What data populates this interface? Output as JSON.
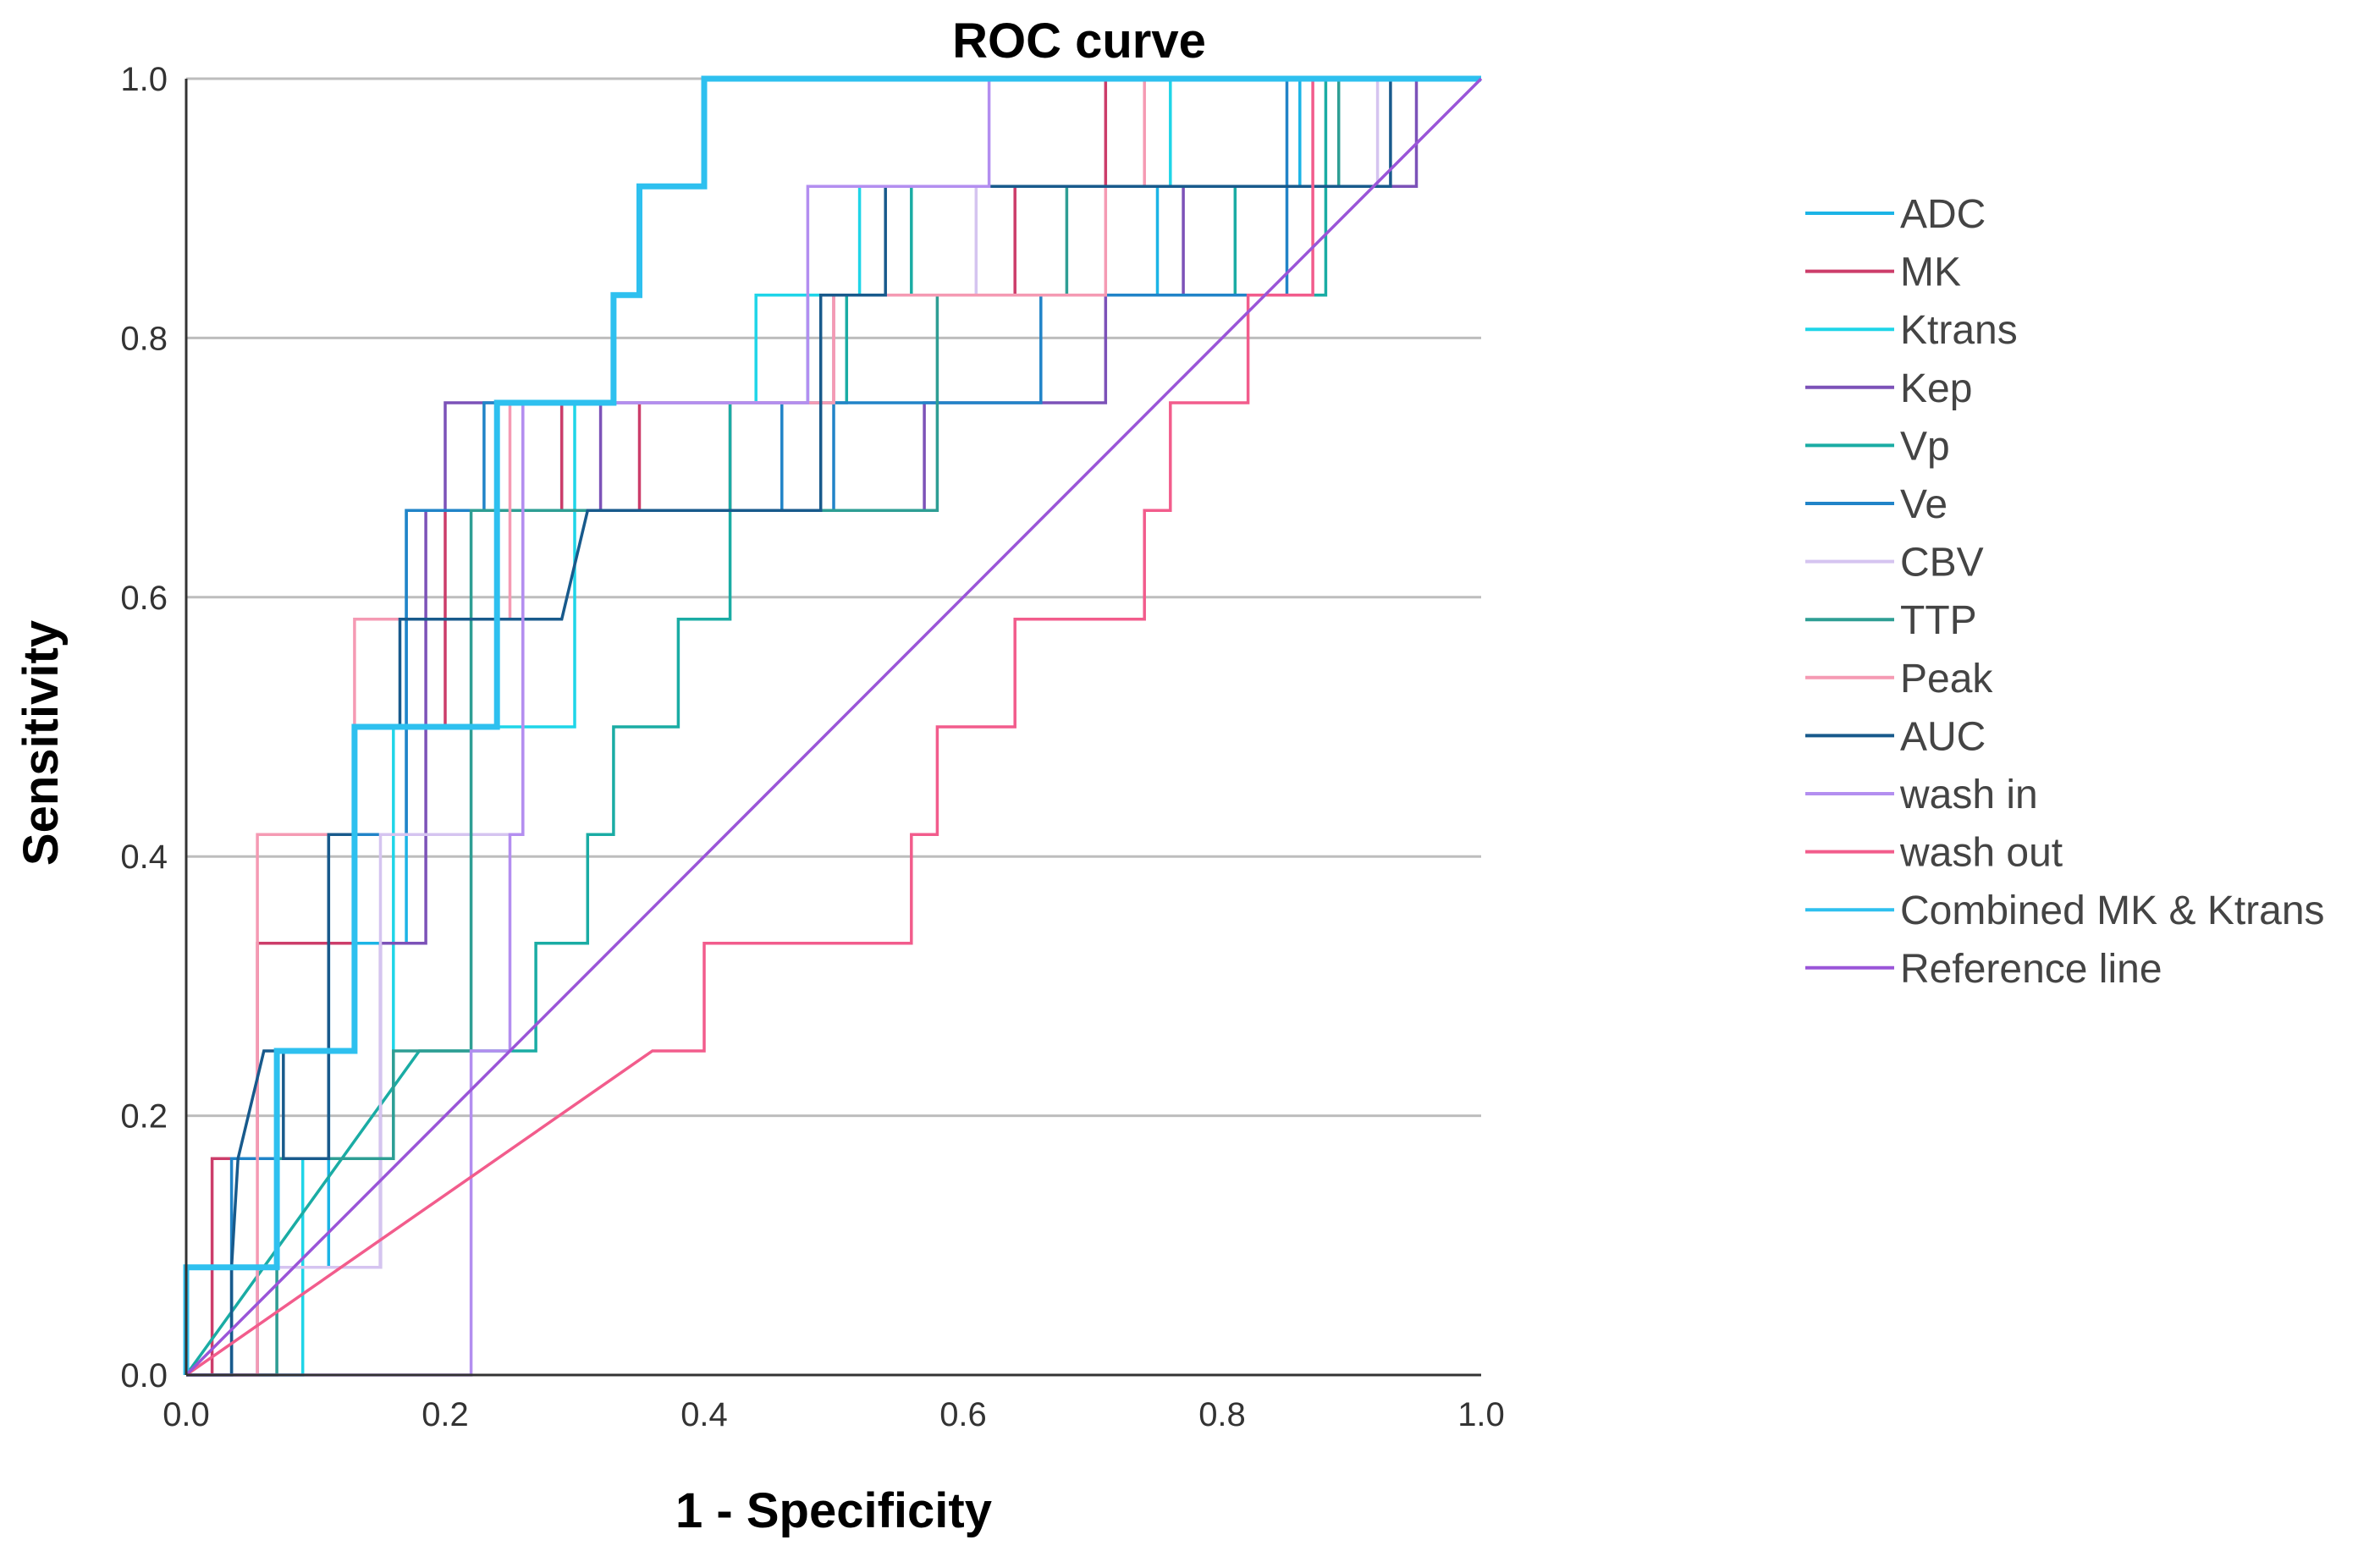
{
  "chart_data": {
    "type": "line",
    "title": "ROC curve",
    "xlabel": "1 - Specificity",
    "ylabel": "Sensitivity",
    "xlim": [
      0,
      1
    ],
    "ylim": [
      0,
      1
    ],
    "xticks": [
      "0.0",
      "0.2",
      "0.4",
      "0.6",
      "0.8",
      "1.0"
    ],
    "yticks": [
      "0.0",
      "0.2",
      "0.4",
      "0.6",
      "0.8",
      "1.0"
    ],
    "grid": "horizontal",
    "legend_position": "right",
    "series": [
      {
        "name": "ADC",
        "color": "#1cb4e6",
        "x": [
          0,
          0,
          0.11,
          0.11,
          0.17,
          0.17,
          0.29,
          0.29,
          0.48,
          0.48,
          0.75,
          0.75,
          0.86,
          0.86,
          1
        ],
        "y": [
          0,
          0.083,
          0.083,
          0.333,
          0.333,
          0.667,
          0.667,
          0.75,
          0.75,
          0.833,
          0.833,
          0.917,
          0.917,
          1,
          1
        ]
      },
      {
        "name": "MK",
        "color": "#cc3d6a",
        "x": [
          0,
          0.02,
          0.02,
          0.055,
          0.055,
          0.13,
          0.13,
          0.2,
          0.2,
          0.29,
          0.29,
          0.35,
          0.35,
          0.42,
          0.42,
          0.5,
          0.5,
          0.64,
          0.64,
          0.71,
          0.71,
          0.87,
          0.87,
          1
        ],
        "y": [
          0,
          0,
          0.167,
          0.167,
          0.333,
          0.333,
          0.5,
          0.5,
          0.667,
          0.667,
          0.75,
          0.75,
          0.667,
          0.667,
          0.75,
          0.75,
          0.833,
          0.833,
          0.917,
          0.917,
          1,
          1,
          1,
          1
        ]
      },
      {
        "name": "Ktrans",
        "color": "#1fd5e8",
        "x": [
          0,
          0.09,
          0.09,
          0.16,
          0.16,
          0.3,
          0.3,
          0.44,
          0.44,
          0.52,
          0.52,
          0.76,
          0.76,
          1
        ],
        "y": [
          0,
          0,
          0.167,
          0.167,
          0.5,
          0.5,
          0.75,
          0.75,
          0.833,
          0.833,
          0.917,
          0.917,
          1,
          1
        ]
      },
      {
        "name": "Kep",
        "color": "#7c52b8",
        "x": [
          0,
          0.055,
          0.055,
          0.15,
          0.15,
          0.185,
          0.185,
          0.2,
          0.2,
          0.32,
          0.32,
          0.57,
          0.57,
          0.71,
          0.71,
          0.77,
          0.77,
          0.95,
          0.95,
          1
        ],
        "y": [
          0,
          0,
          0.083,
          0.083,
          0.333,
          0.333,
          0.667,
          0.667,
          0.75,
          0.75,
          0.667,
          0.667,
          0.75,
          0.75,
          0.833,
          0.833,
          0.917,
          0.917,
          1,
          1
        ]
      },
      {
        "name": "Vp",
        "color": "#1aaca4",
        "x": [
          0,
          0.18,
          0.27,
          0.27,
          0.31,
          0.31,
          0.33,
          0.33,
          0.38,
          0.38,
          0.42,
          0.42,
          0.51,
          0.51,
          0.56,
          0.56,
          0.81,
          0.81,
          0.88,
          0.88,
          1
        ],
        "y": [
          0,
          0.25,
          0.25,
          0.333,
          0.333,
          0.417,
          0.417,
          0.5,
          0.5,
          0.583,
          0.583,
          0.75,
          0.75,
          0.833,
          0.833,
          0.917,
          0.917,
          0.833,
          0.833,
          1,
          1
        ]
      },
      {
        "name": "Ve",
        "color": "#2184c8",
        "x": [
          0,
          0.035,
          0.035,
          0.11,
          0.11,
          0.17,
          0.17,
          0.23,
          0.23,
          0.46,
          0.46,
          0.5,
          0.5,
          0.66,
          0.66,
          0.85,
          0.85,
          1
        ],
        "y": [
          0,
          0,
          0.167,
          0.167,
          0.417,
          0.417,
          0.667,
          0.667,
          0.75,
          0.75,
          0.667,
          0.667,
          0.75,
          0.75,
          0.833,
          0.833,
          1,
          1
        ]
      },
      {
        "name": "CBV",
        "color": "#d5c4f0",
        "x": [
          0,
          0.07,
          0.07,
          0.15,
          0.15,
          0.26,
          0.26,
          0.5,
          0.5,
          0.61,
          0.61,
          0.92,
          0.92,
          1
        ],
        "y": [
          0,
          0,
          0.083,
          0.083,
          0.417,
          0.417,
          0.75,
          0.75,
          0.833,
          0.833,
          0.917,
          0.917,
          1,
          1
        ]
      },
      {
        "name": "TTP",
        "color": "#2e9e94",
        "x": [
          0,
          0.07,
          0.07,
          0.16,
          0.16,
          0.22,
          0.22,
          0.58,
          0.58,
          0.68,
          0.68,
          0.89,
          0.89,
          1
        ],
        "y": [
          0,
          0,
          0.167,
          0.167,
          0.25,
          0.25,
          0.667,
          0.667,
          0.833,
          0.833,
          0.917,
          0.917,
          1,
          1
        ]
      },
      {
        "name": "Peak",
        "color": "#f59ab3",
        "x": [
          0,
          0.055,
          0.055,
          0.13,
          0.13,
          0.25,
          0.25,
          0.5,
          0.5,
          0.71,
          0.71,
          0.74,
          0.74,
          1
        ],
        "y": [
          0,
          0,
          0.417,
          0.417,
          0.583,
          0.583,
          0.75,
          0.75,
          0.833,
          0.833,
          0.917,
          0.917,
          1,
          1
        ]
      },
      {
        "name": "AUC",
        "color": "#185a8c",
        "x": [
          0,
          0.035,
          0.035,
          0.04,
          0.06,
          0.075,
          0.075,
          0.11,
          0.11,
          0.13,
          0.13,
          0.165,
          0.165,
          0.26,
          0.29,
          0.31,
          0.49,
          0.49,
          0.54,
          0.54,
          0.93,
          0.93,
          1
        ],
        "y": [
          0,
          0,
          0.083,
          0.167,
          0.25,
          0.25,
          0.167,
          0.167,
          0.417,
          0.417,
          0.5,
          0.5,
          0.583,
          0.583,
          0.583,
          0.667,
          0.667,
          0.833,
          0.833,
          0.917,
          0.917,
          1,
          1
        ]
      },
      {
        "name": "wash in",
        "color": "#b38ef0",
        "x": [
          0,
          0.22,
          0.22,
          0.25,
          0.25,
          0.26,
          0.26,
          0.48,
          0.48,
          0.52,
          0.52,
          0.62,
          0.62,
          0.94,
          0.94,
          1
        ],
        "y": [
          0,
          0,
          0.25,
          0.25,
          0.417,
          0.417,
          0.75,
          0.75,
          0.917,
          0.917,
          0.917,
          0.917,
          1,
          1,
          1,
          1
        ]
      },
      {
        "name": "wash out",
        "color": "#f25c8c",
        "x": [
          0,
          0.36,
          0.4,
          0.4,
          0.56,
          0.56,
          0.58,
          0.58,
          0.64,
          0.64,
          0.74,
          0.74,
          0.76,
          0.76,
          0.8,
          0.8,
          0.82,
          0.82,
          0.87,
          0.87,
          1
        ],
        "y": [
          0,
          0.25,
          0.25,
          0.333,
          0.333,
          0.417,
          0.417,
          0.5,
          0.5,
          0.583,
          0.583,
          0.667,
          0.667,
          0.75,
          0.75,
          0.75,
          0.75,
          0.833,
          0.833,
          1,
          1
        ]
      },
      {
        "name": "Combined MK & Ktrans",
        "color": "#2ec0ef",
        "x": [
          0,
          0,
          0.07,
          0.07,
          0.13,
          0.13,
          0.24,
          0.24,
          0.33,
          0.33,
          0.35,
          0.35,
          0.4,
          0.4,
          1
        ],
        "y": [
          0,
          0.083,
          0.083,
          0.25,
          0.25,
          0.5,
          0.5,
          0.75,
          0.75,
          0.833,
          0.833,
          0.917,
          0.917,
          1,
          1
        ]
      },
      {
        "name": "Reference line",
        "color": "#9a55d8",
        "x": [
          0,
          1
        ],
        "y": [
          0,
          1
        ]
      }
    ]
  }
}
